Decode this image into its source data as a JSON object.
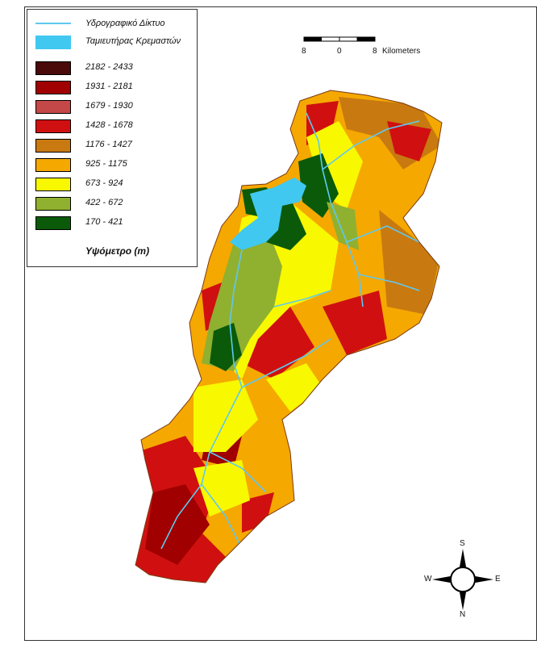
{
  "legend": {
    "title": "Υψόμετρο (m)",
    "river": {
      "label": "Υδρογραφικό Δίκτυο",
      "color": "#5fc8f0"
    },
    "lake": {
      "label": "Ταμιευτήρας Κρεμαστών",
      "color": "#40c8f0"
    },
    "classes": [
      {
        "label": "2182 - 2433",
        "color": "#4a0a0a"
      },
      {
        "label": "1931 - 2181",
        "color": "#a00000"
      },
      {
        "label": "1679 - 1930",
        "color": "#c44848"
      },
      {
        "label": "1428 - 1678",
        "color": "#d01010"
      },
      {
        "label": "1176 - 1427",
        "color": "#c87a10"
      },
      {
        "label": "925 - 1175",
        "color": "#f5a800"
      },
      {
        "label": "673 - 924",
        "color": "#f8f800"
      },
      {
        "label": "422 - 672",
        "color": "#90b030"
      },
      {
        "label": "170 - 421",
        "color": "#0a5a0a"
      }
    ]
  },
  "scale_bar": {
    "left_label": "8",
    "mid_label": "0",
    "right_label": "8",
    "unit": "Kilometers"
  },
  "compass": {
    "n": "N",
    "s": "S",
    "e": "E",
    "w": "W"
  }
}
